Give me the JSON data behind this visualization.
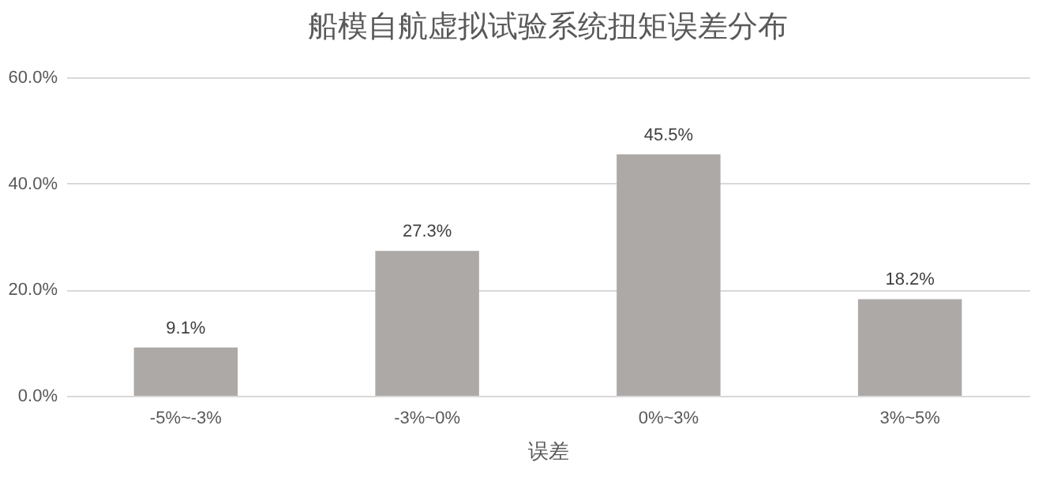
{
  "chart_data": {
    "type": "bar",
    "title": "船模自航虚拟试验系统扭矩误差分布",
    "xlabel": "误差",
    "categories": [
      "-5%~-3%",
      "-3%~0%",
      "0%~3%",
      "3%~5%"
    ],
    "values": [
      9.1,
      27.3,
      45.5,
      18.2
    ],
    "value_labels": [
      "9.1%",
      "27.3%",
      "45.5%",
      "18.2%"
    ],
    "color": "#ada9a7",
    "ylim": [
      0,
      60
    ],
    "yticks": [
      {
        "value": 0,
        "label": "0.0%"
      },
      {
        "value": 20,
        "label": "20.0%"
      },
      {
        "value": 40,
        "label": "40.0%"
      },
      {
        "value": 60,
        "label": "60.0%"
      }
    ],
    "grid": "y"
  }
}
